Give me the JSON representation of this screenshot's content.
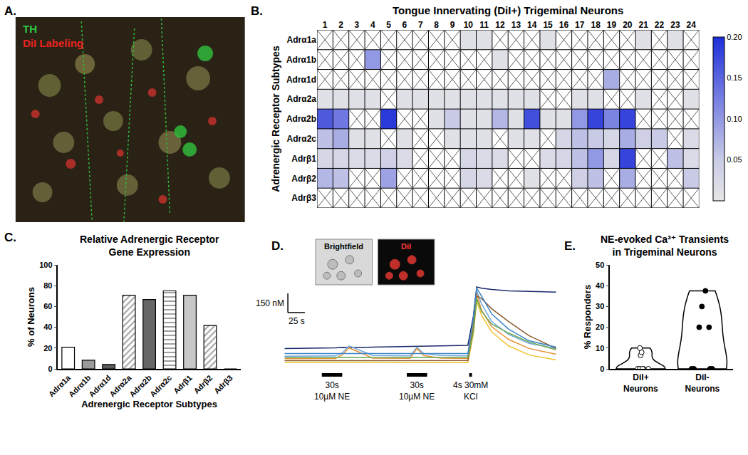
{
  "chart_data": [
    {
      "type": "image",
      "panel_label": "A.",
      "labels": [
        {
          "text": "TH",
          "color": "#2ecc40"
        },
        {
          "text": "DiI Labeling",
          "color": "#e8231f"
        }
      ]
    },
    {
      "type": "heatmap",
      "panel_label": "B.",
      "title": "Tongue Innervating (DiI+) Trigeminal Neurons",
      "y_label": "Adrenergic Receptor Subtypes",
      "columns": [
        1,
        2,
        3,
        4,
        5,
        6,
        7,
        8,
        9,
        10,
        11,
        12,
        13,
        14,
        15,
        16,
        17,
        18,
        19,
        20,
        21,
        22,
        23,
        24
      ],
      "rows": [
        "Adrα1a",
        "Adrα1b",
        "Adrα1d",
        "Adrα2a",
        "Adrα2b",
        "Adrα2c",
        "Adrβ1",
        "Adrβ2",
        "Adrβ3"
      ],
      "cells": [
        [
          null,
          null,
          null,
          null,
          null,
          null,
          null,
          null,
          null,
          0.01,
          0.01,
          null,
          null,
          null,
          0.01,
          null,
          null,
          null,
          null,
          null,
          0.01,
          null,
          0.01,
          null
        ],
        [
          null,
          null,
          null,
          0.1,
          null,
          null,
          null,
          null,
          null,
          null,
          null,
          0.01,
          null,
          null,
          null,
          null,
          null,
          null,
          null,
          null,
          null,
          null,
          null,
          null
        ],
        [
          null,
          null,
          null,
          null,
          null,
          null,
          null,
          null,
          null,
          null,
          null,
          null,
          null,
          null,
          null,
          null,
          null,
          null,
          0.08,
          null,
          null,
          null,
          null,
          null
        ],
        [
          0.01,
          0.01,
          0.01,
          0.01,
          null,
          0.01,
          0.01,
          0.01,
          0.01,
          0.01,
          0.01,
          0.01,
          0.01,
          0.01,
          null,
          null,
          0.01,
          0.01,
          null,
          null,
          0.01,
          null,
          null,
          0.01
        ],
        [
          0.16,
          0.13,
          null,
          null,
          0.19,
          null,
          null,
          0.01,
          0.05,
          0.01,
          0.01,
          0.07,
          0.01,
          0.17,
          0.01,
          0.01,
          0.1,
          0.18,
          0.12,
          0.18,
          null,
          null,
          null,
          null
        ],
        [
          0.06,
          0.08,
          0.01,
          0.01,
          null,
          0.01,
          null,
          null,
          0.01,
          0.01,
          0.01,
          null,
          0.01,
          0.01,
          null,
          0.03,
          0.06,
          0.05,
          0.03,
          0.08,
          0.04,
          0.05,
          null,
          0.02
        ],
        [
          0.03,
          0.03,
          0.02,
          0.02,
          0.04,
          0.02,
          null,
          null,
          null,
          0.03,
          0.02,
          0.02,
          null,
          null,
          0.02,
          0.03,
          0.06,
          0.1,
          0.03,
          0.18,
          null,
          null,
          0.06,
          0.02
        ],
        [
          0.07,
          0.06,
          null,
          null,
          0.09,
          null,
          null,
          null,
          null,
          0.03,
          0.02,
          null,
          null,
          0.01,
          null,
          null,
          0.04,
          0.06,
          null,
          0.08,
          null,
          null,
          null,
          0.05
        ],
        [
          null,
          null,
          null,
          null,
          null,
          null,
          null,
          null,
          null,
          null,
          null,
          null,
          null,
          null,
          null,
          null,
          null,
          null,
          null,
          null,
          null,
          null,
          null,
          null
        ]
      ],
      "colorbar_range": [
        0,
        0.2
      ],
      "colorbar_ticks": [
        0.05,
        {
          "value": 0.1,
          "label": "0.10"
        },
        0.15,
        {
          "value": 0.2,
          "label": "0.20"
        }
      ]
    },
    {
      "type": "bar",
      "panel_label": "C.",
      "title": "Relative Adrenergic Receptor\nGene Expression",
      "x_label": "Adrenergic Receptor Subtypes",
      "y_label": "% of Neurons",
      "categories": [
        "Adrα1a",
        "Adrα1b",
        "Adrα1d",
        "Adrα2a",
        "Adrα2b",
        "Adrα2c",
        "Adrβ1",
        "Adrβ2",
        "Adrβ3"
      ],
      "values": [
        20.8,
        8.3,
        4.2,
        70.8,
        66.7,
        75,
        70.8,
        41.7,
        0
      ],
      "colors": [
        "#ffffff",
        "#9a9a9a",
        "#5c5c5c",
        "#ffffff",
        "#666666",
        "#ffffff",
        "#c8c8c8",
        "#ffffff",
        "#ffffff"
      ],
      "ylim": [
        0,
        100
      ],
      "yticks": [
        0,
        20,
        40,
        60,
        80,
        100
      ],
      "grid": false
    },
    {
      "type": "line",
      "panel_label": "D.",
      "insets": [
        "Brightfield",
        "DiI"
      ],
      "x": [
        0,
        50,
        75,
        85,
        95,
        130,
        185,
        195,
        205,
        230,
        270,
        278,
        283,
        290,
        305,
        330,
        360,
        400
      ],
      "series": [
        {
          "color": "#1a2a6c",
          "values": [
            170,
            172,
            175,
            178,
            176,
            180,
            185,
            186,
            188,
            190,
            195,
            420,
            650,
            640,
            630,
            620,
            615,
            610
          ]
        },
        {
          "color": "#6fa8dc",
          "values": [
            110,
            110,
            112,
            135,
            190,
            115,
            112,
            180,
            130,
            115,
            112,
            380,
            620,
            520,
            380,
            280,
            210,
            170
          ]
        },
        {
          "color": "#e69138",
          "values": [
            90,
            90,
            92,
            120,
            175,
            95,
            93,
            170,
            115,
            95,
            92,
            350,
            600,
            470,
            340,
            240,
            170,
            125
          ]
        },
        {
          "color": "#f1c232",
          "values": [
            60,
            60,
            60,
            61,
            62,
            60,
            60,
            61,
            60,
            60,
            60,
            280,
            540,
            430,
            300,
            190,
            120,
            80
          ]
        },
        {
          "color": "#8b5a2b",
          "values": [
            75,
            75,
            76,
            76,
            77,
            76,
            76,
            77,
            76,
            76,
            76,
            320,
            580,
            560,
            480,
            380,
            270,
            170
          ]
        },
        {
          "color": "#6aa84f",
          "values": [
            100,
            100,
            100,
            101,
            102,
            100,
            100,
            101,
            100,
            100,
            100,
            300,
            560,
            460,
            360,
            290,
            220,
            160
          ]
        },
        {
          "color": "#3d85c6",
          "values": [
            130,
            130,
            131,
            132,
            133,
            131,
            131,
            132,
            131,
            131,
            131,
            400,
            640,
            580,
            440,
            320,
            230,
            180
          ]
        }
      ],
      "xlim": [
        0,
        400
      ],
      "ylim": [
        0,
        750
      ],
      "tick_labels": false,
      "scale_bars": [
        {
          "axis": "y",
          "label": "150 nM",
          "value": 150
        },
        {
          "axis": "x",
          "label": "25 s",
          "value": 25
        }
      ],
      "stimuli": [
        {
          "label": "30s\n10µM NE",
          "start": 55,
          "end": 85
        },
        {
          "label": "30s\n10µM NE",
          "start": 180,
          "end": 210
        },
        {
          "label": "4s 30mM\nKCl",
          "start": 272,
          "end": 276
        }
      ]
    },
    {
      "type": "violin",
      "panel_label": "E.",
      "title": "NE-evoked Ca²⁺ Transients\nin Trigeminal Neurons",
      "y_label": "% Responders",
      "series": [
        {
          "name": "DiI+ Neurons",
          "marker": "open_circle",
          "values": [
            0,
            0,
            0,
            0,
            0,
            0,
            6.5,
            8,
            10
          ]
        },
        {
          "name": "DiI- Neurons",
          "marker": "circle",
          "values": [
            0,
            0,
            0,
            0,
            20,
            20,
            30,
            37.5
          ]
        }
      ],
      "ylim": [
        0,
        50
      ],
      "yticks": [
        0,
        10,
        20,
        30,
        40,
        50
      ],
      "grid": false
    }
  ]
}
